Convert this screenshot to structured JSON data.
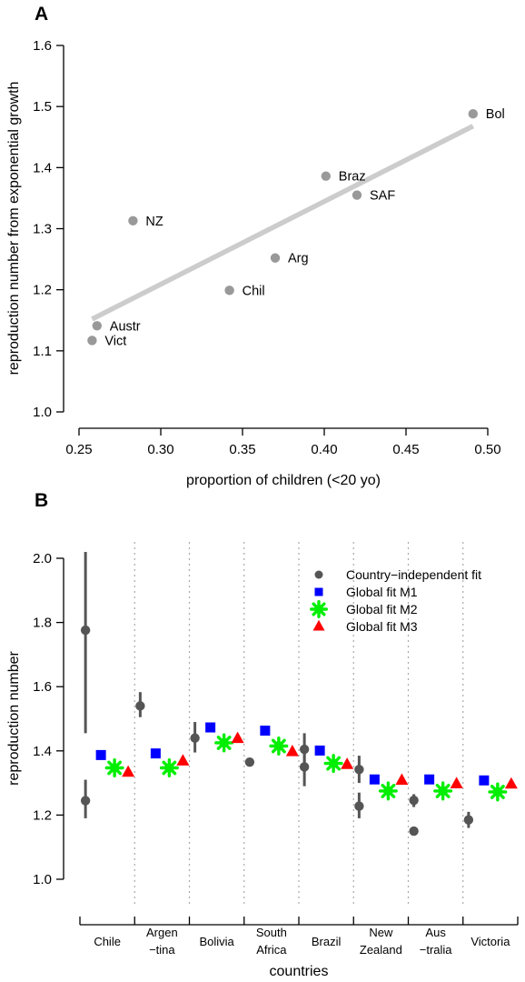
{
  "chart_data": [
    {
      "panel": "A",
      "type": "scatter",
      "xlabel": "proportion of children (<20 yo)",
      "ylabel": "reproduction number from exponential growth",
      "xlim": [
        0.25,
        0.5
      ],
      "ylim": [
        1.0,
        1.6
      ],
      "xticks": [
        "0.25",
        "0.30",
        "0.35",
        "0.40",
        "0.45",
        "0.50"
      ],
      "yticks": [
        "1.0",
        "1.1",
        "1.2",
        "1.3",
        "1.4",
        "1.5",
        "1.6"
      ],
      "points": [
        {
          "label": "Bol",
          "x": 0.491,
          "y": 1.488
        },
        {
          "label": "Braz",
          "x": 0.401,
          "y": 1.386
        },
        {
          "label": "SAF",
          "x": 0.42,
          "y": 1.355
        },
        {
          "label": "NZ",
          "x": 0.283,
          "y": 1.313
        },
        {
          "label": "Arg",
          "x": 0.37,
          "y": 1.252
        },
        {
          "label": "Chil",
          "x": 0.342,
          "y": 1.199
        },
        {
          "label": "Austr",
          "x": 0.261,
          "y": 1.141
        },
        {
          "label": "Vict",
          "x": 0.258,
          "y": 1.117
        }
      ],
      "fit_line": {
        "x": [
          0.258,
          0.491
        ],
        "y": [
          1.152,
          1.468
        ]
      },
      "colors": {
        "points": "#999999",
        "fit": "#cccccc"
      }
    },
    {
      "panel": "B",
      "type": "scatter",
      "xlabel": "countries",
      "ylabel": "reproduction number",
      "ylim": [
        1.0,
        2.0
      ],
      "yticks": [
        "1.0",
        "1.2",
        "1.4",
        "1.6",
        "1.8",
        "2.0"
      ],
      "categories": [
        [
          "Chile"
        ],
        [
          "Argen",
          "−tina"
        ],
        [
          "Bolivia"
        ],
        [
          "South",
          "Africa"
        ],
        [
          "Brazil"
        ],
        [
          "New",
          "Zealand"
        ],
        [
          "Aus",
          "−tralia"
        ],
        [
          "Victoria"
        ]
      ],
      "series": [
        {
          "name": "Country−independent fit",
          "marker": "circle",
          "color": "#555555",
          "points": [
            {
              "cat": 0,
              "y": 1.776,
              "lo": 1.455,
              "hi": 2.02
            },
            {
              "cat": 0,
              "y": 1.245,
              "lo": 1.19,
              "hi": 1.31
            },
            {
              "cat": 1,
              "y": 1.54,
              "lo": 1.505,
              "hi": 1.583
            },
            {
              "cat": 2,
              "y": 1.44,
              "lo": 1.395,
              "hi": 1.49
            },
            {
              "cat": 3,
              "y": 1.365,
              "lo": null,
              "hi": null
            },
            {
              "cat": 4,
              "y": 1.405,
              "lo": 1.36,
              "hi": 1.455
            },
            {
              "cat": 4,
              "y": 1.35,
              "lo": 1.29,
              "hi": 1.405
            },
            {
              "cat": 5,
              "y": 1.342,
              "lo": 1.3,
              "hi": 1.385
            },
            {
              "cat": 5,
              "y": 1.228,
              "lo": 1.19,
              "hi": 1.27
            },
            {
              "cat": 6,
              "y": 1.246,
              "lo": 1.225,
              "hi": 1.265
            },
            {
              "cat": 6,
              "y": 1.15,
              "lo": null,
              "hi": null
            },
            {
              "cat": 7,
              "y": 1.185,
              "lo": 1.16,
              "hi": 1.21
            }
          ]
        },
        {
          "name": "Global fit M1",
          "marker": "square",
          "color": "#0000ff",
          "values": [
            1.387,
            1.392,
            1.473,
            1.463,
            1.401,
            1.311,
            1.311,
            1.308
          ]
        },
        {
          "name": "Global fit M2",
          "marker": "asterisk",
          "color": "#00ee00",
          "values": [
            1.347,
            1.347,
            1.425,
            1.415,
            1.361,
            1.275,
            1.275,
            1.272
          ]
        },
        {
          "name": "Global fit M3",
          "marker": "triangle",
          "color": "#ff0000",
          "values": [
            1.333,
            1.368,
            1.438,
            1.397,
            1.357,
            1.308,
            1.297,
            1.296
          ]
        }
      ],
      "legend_position": "top-right"
    }
  ]
}
